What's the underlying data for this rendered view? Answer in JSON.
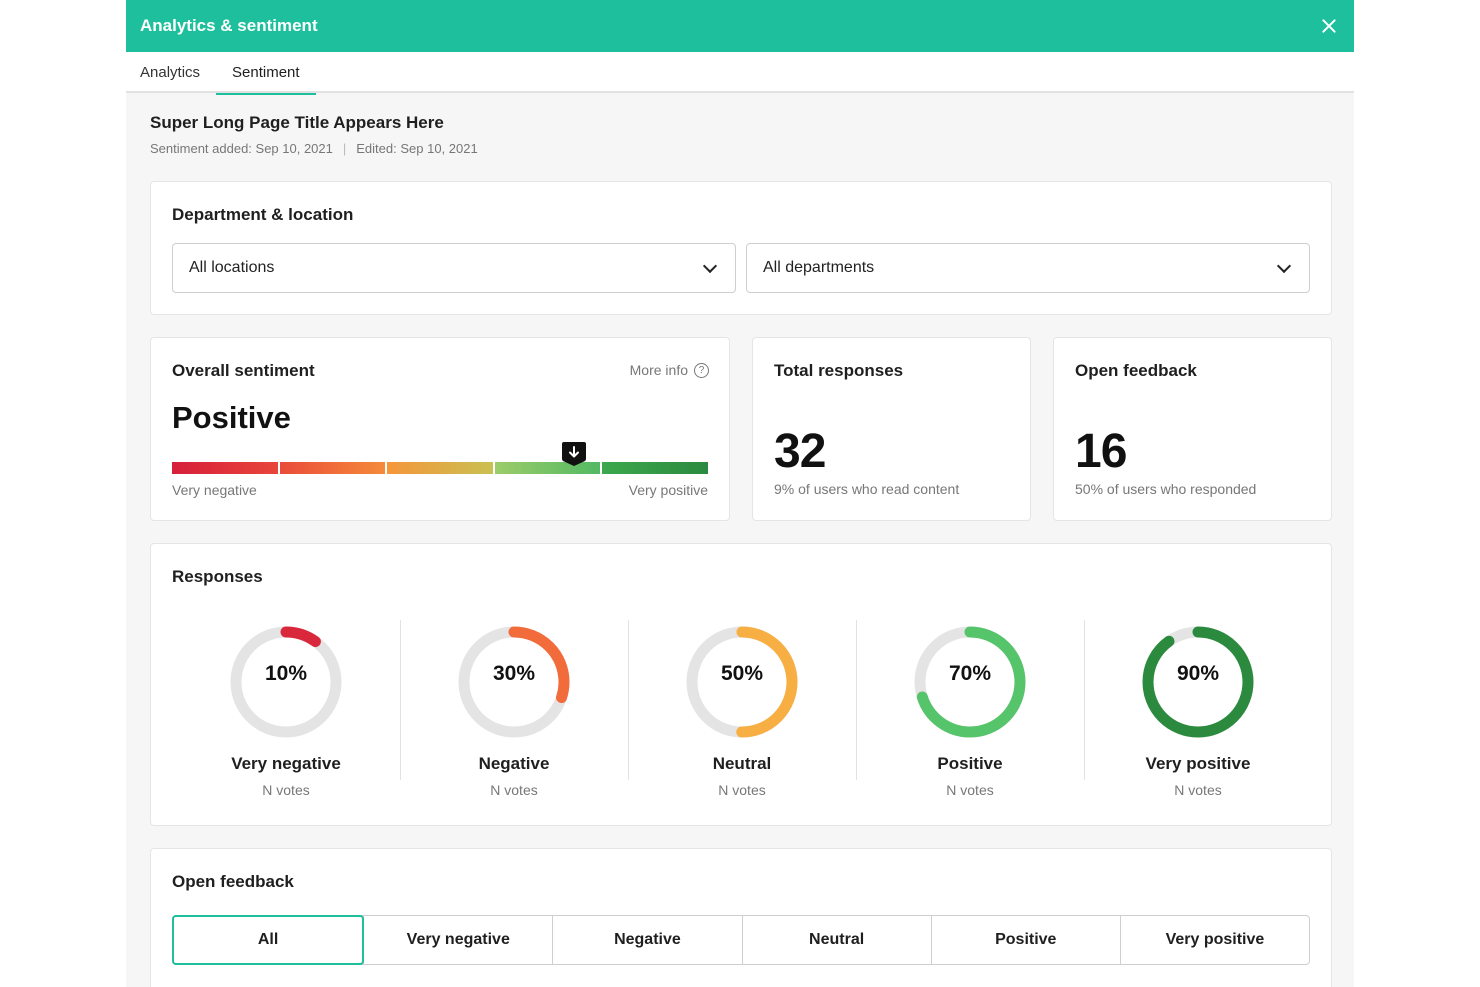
{
  "header": {
    "title": "Analytics & sentiment",
    "close_icon": "close-icon"
  },
  "tabs": [
    {
      "label": "Analytics",
      "active": false
    },
    {
      "label": "Sentiment",
      "active": true
    }
  ],
  "page": {
    "title": "Super Long Page Title Appears Here",
    "added": "Sentiment added: Sep 10, 2021",
    "separator": "|",
    "edited": "Edited: Sep 10, 2021"
  },
  "dept_location": {
    "title": "Department & location",
    "location_select": "All locations",
    "department_select": "All departments"
  },
  "overall": {
    "title": "Overall sentiment",
    "more_info": "More info",
    "value": "Positive",
    "scale_min": "Very negative",
    "scale_max": "Very positive",
    "marker_position": 0.75
  },
  "total_responses": {
    "title": "Total responses",
    "value": "32",
    "sub": "9% of users who read content"
  },
  "open_feedback_stat": {
    "title": "Open feedback",
    "value": "16",
    "sub": "50% of users who responded"
  },
  "responses": {
    "title": "Responses",
    "items": [
      {
        "pct_label": "10%",
        "pct": 10,
        "label": "Very negative",
        "votes": "N votes",
        "color": "#d9283c"
      },
      {
        "pct_label": "30%",
        "pct": 30,
        "label": "Negative",
        "votes": "N votes",
        "color": "#f26b3a"
      },
      {
        "pct_label": "50%",
        "pct": 50,
        "label": "Neutral",
        "votes": "N votes",
        "color": "#f7ae43"
      },
      {
        "pct_label": "70%",
        "pct": 70,
        "label": "Positive",
        "votes": "N votes",
        "color": "#56c46b"
      },
      {
        "pct_label": "90%",
        "pct": 90,
        "label": "Very positive",
        "votes": "N votes",
        "color": "#2b8a3e"
      }
    ]
  },
  "open_feedback": {
    "title": "Open feedback",
    "filters": [
      {
        "label": "All",
        "active": true
      },
      {
        "label": "Very negative",
        "active": false
      },
      {
        "label": "Negative",
        "active": false
      },
      {
        "label": "Neutral",
        "active": false
      },
      {
        "label": "Positive",
        "active": false
      },
      {
        "label": "Very positive",
        "active": false
      }
    ]
  },
  "colors": {
    "accent": "#1dbf9c",
    "track": "#e4e4e4"
  }
}
